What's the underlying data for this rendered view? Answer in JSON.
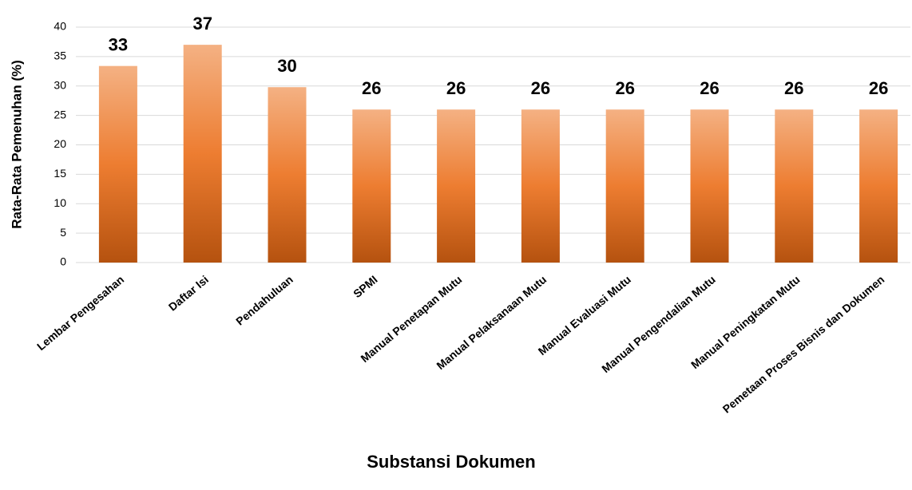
{
  "chart_data": {
    "type": "bar",
    "x_label": "Substansi Dokumen",
    "y_label": "Rata-Rata Pemenuhan (%)",
    "categories": [
      "Lembar Pengesahan",
      "Daftar Isi",
      "Pendahuluan",
      "SPMI",
      "Manual Penetapan Mutu",
      "Manual Pelaksanaan Mutu",
      "Manual Evaluasi Mutu",
      "Manual Pengendalian Mutu",
      "Manual Peningkatan Mutu",
      "Pemetaan Proses Bisnis dan Dokumen"
    ],
    "values": [
      33.4,
      37,
      29.8,
      26,
      26,
      26,
      26,
      26,
      26,
      26
    ],
    "value_labels": [
      "33",
      "37",
      "30",
      "26",
      "26",
      "26",
      "26",
      "26",
      "26",
      "26"
    ],
    "color": "#ed7d31",
    "ylim": [
      0,
      40
    ],
    "yticks": [
      0,
      5,
      10,
      15,
      20,
      25,
      30,
      35,
      40
    ],
    "grid": true
  }
}
